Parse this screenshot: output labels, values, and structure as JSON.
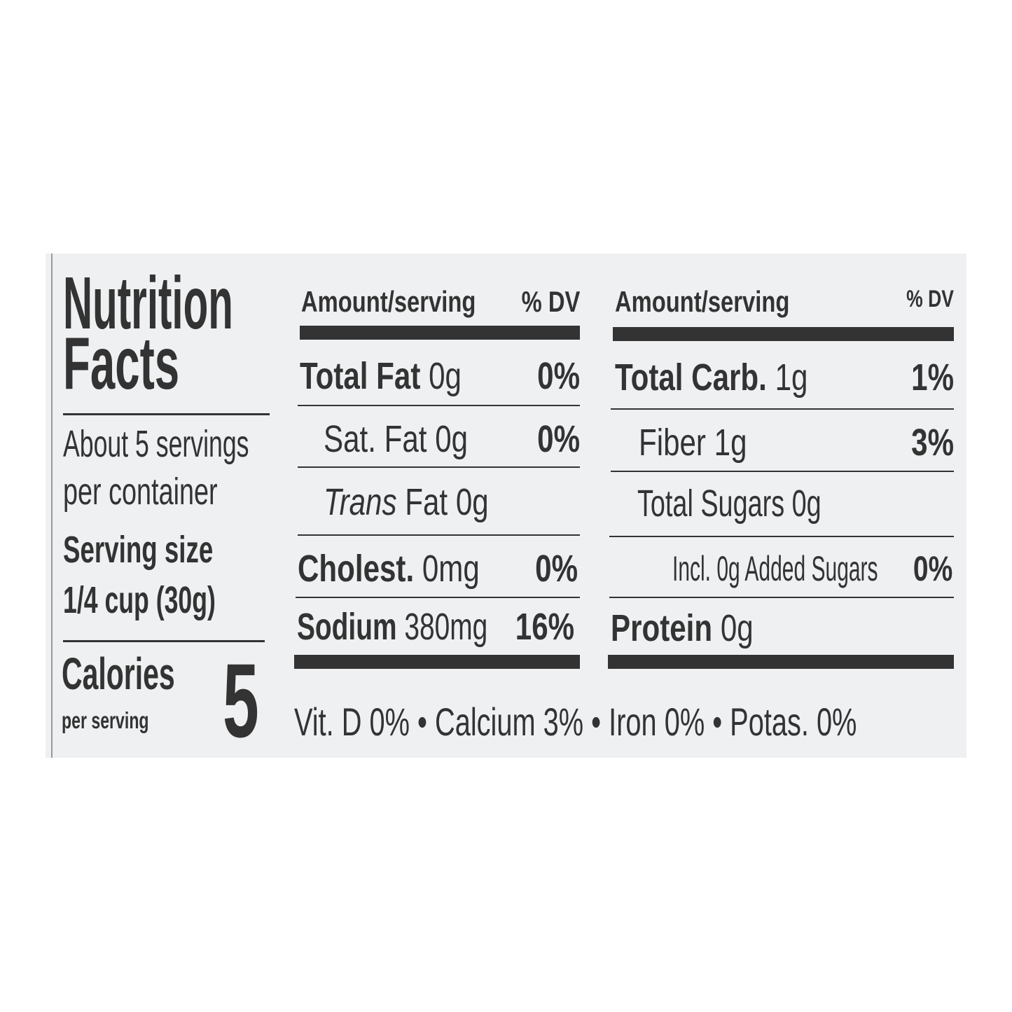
{
  "title_line1": "Nutrition",
  "title_line2": "Facts",
  "servings_line1": "About 5 servings",
  "servings_line2": "per container",
  "serving_size_label": "Serving size",
  "serving_size_value": "1/4 cup (30g)",
  "calories_label": "Calories",
  "calories_sub": "per serving",
  "calories_value": "5",
  "left_table": {
    "header_amount": "Amount/serving",
    "header_dv": "% DV",
    "rows": [
      {
        "name": "Total Fat",
        "amount": "0g",
        "dv": "0%"
      },
      {
        "name": "Sat. Fat",
        "amount": "0g",
        "dv": "0%"
      },
      {
        "name": "Trans",
        "amount": "Fat 0g",
        "dv": ""
      },
      {
        "name": "Cholest.",
        "amount": "0mg",
        "dv": "0%"
      },
      {
        "name": "Sodium",
        "amount": "380mg",
        "dv": "16%"
      }
    ]
  },
  "right_table": {
    "header_amount": "Amount/serving",
    "header_dv": "% DV",
    "rows": [
      {
        "name": "Total Carb.",
        "amount": "1g",
        "dv": "1%"
      },
      {
        "name": "Fiber",
        "amount": "1g",
        "dv": "3%"
      },
      {
        "name": "Total Sugars",
        "amount": "0g",
        "dv": ""
      },
      {
        "name": "Incl.",
        "amount": "0g Added Sugars",
        "dv": "0%"
      },
      {
        "name": "Protein",
        "amount": "0g",
        "dv": ""
      }
    ]
  },
  "micronutrients": "Vit. D 0% • Calcium 3% • Iron 0% • Potas. 0%"
}
